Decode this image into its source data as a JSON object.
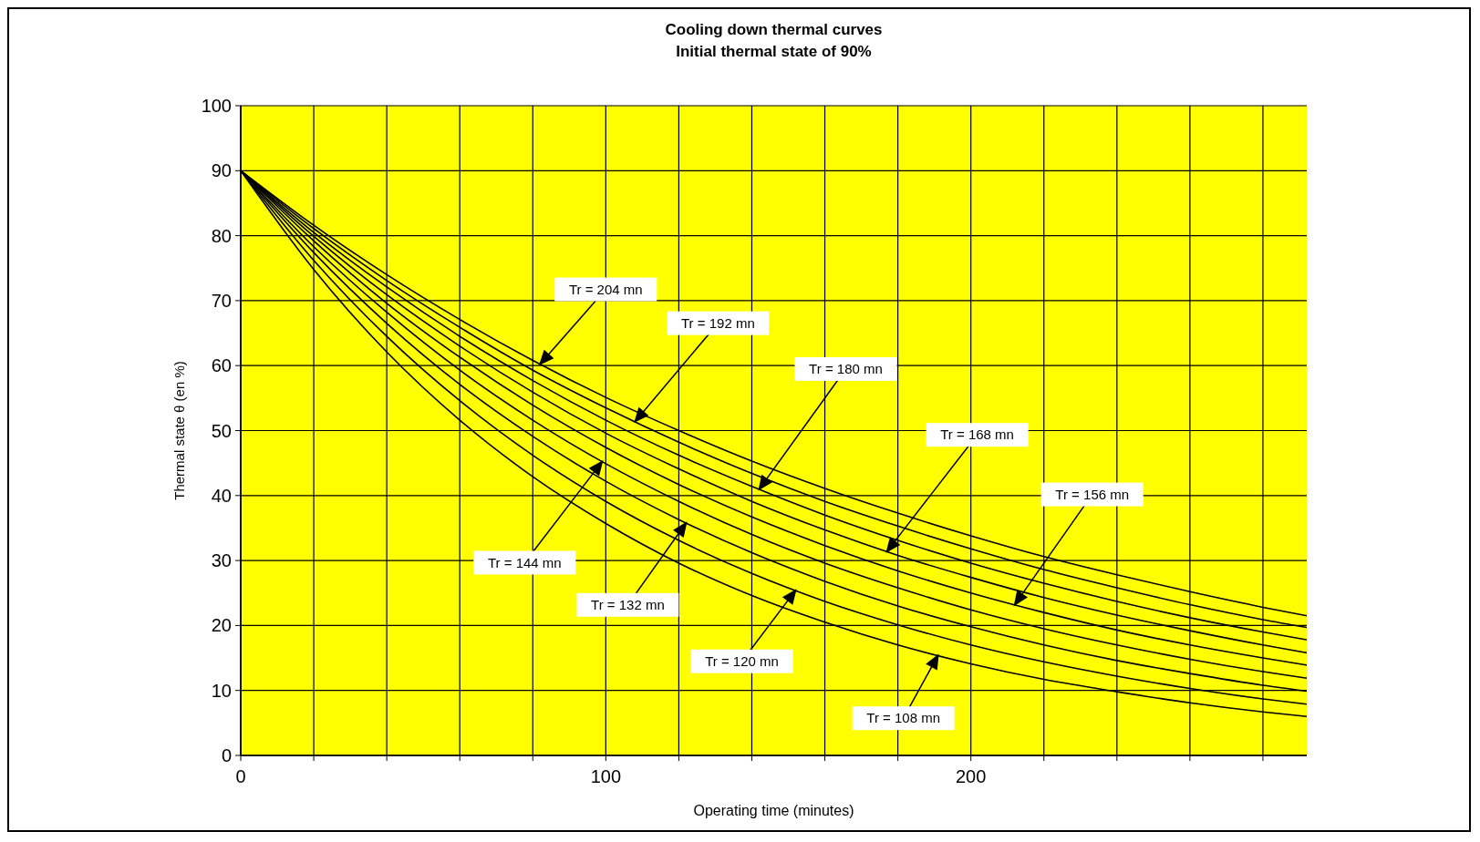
{
  "chart_data": {
    "type": "line",
    "title": "Cooling down thermal curves",
    "subtitle": "Initial thermal state of 90%",
    "xlabel": "Operating time (minutes)",
    "ylabel": "Thermal state θ (en %)",
    "x": [
      0,
      20,
      40,
      60,
      80,
      100,
      120,
      140,
      160,
      180,
      200,
      220,
      240,
      260,
      280,
      292
    ],
    "series": [
      {
        "color": "#000000",
        "values": [
          90,
          74.8,
          62.1,
          51.6,
          42.9,
          35.7,
          29.6,
          24.6,
          20.5,
          17.0,
          14.1,
          11.7,
          9.8,
          8.1,
          6.7,
          6.0
        ]
      },
      {
        "color": "#000000",
        "values": [
          90,
          76.2,
          64.5,
          54.6,
          46.2,
          39.1,
          33.1,
          28.0,
          23.7,
          20.1,
          17.0,
          14.4,
          12.2,
          10.3,
          8.7,
          7.9
        ]
      },
      {
        "color": "#000000",
        "values": [
          90,
          77.4,
          66.5,
          57.1,
          49.1,
          42.2,
          36.3,
          31.2,
          26.8,
          23.0,
          19.8,
          17.0,
          14.6,
          12.6,
          10.8,
          9.9
        ]
      },
      {
        "color": "#000000",
        "values": [
          90,
          78.3,
          68.2,
          59.3,
          51.6,
          44.9,
          39.1,
          34.0,
          29.6,
          25.8,
          22.4,
          19.5,
          17.0,
          14.8,
          12.9,
          11.9
        ]
      },
      {
        "color": "#000000",
        "values": [
          90,
          79.2,
          69.6,
          61.3,
          53.9,
          47.4,
          41.7,
          36.7,
          32.3,
          28.4,
          25.0,
          22.0,
          19.3,
          17.0,
          15.0,
          13.9
        ]
      },
      {
        "color": "#000000",
        "values": [
          90,
          79.9,
          70.9,
          63.0,
          55.9,
          49.6,
          44.1,
          39.1,
          34.7,
          30.8,
          27.4,
          24.3,
          21.6,
          19.2,
          17.0,
          15.8
        ]
      },
      {
        "color": "#000000",
        "values": [
          90,
          80.5,
          72.1,
          64.5,
          57.7,
          51.6,
          46.2,
          41.4,
          37.0,
          33.1,
          29.6,
          26.5,
          23.7,
          21.2,
          19.0,
          17.8
        ]
      },
      {
        "color": "#000000",
        "values": [
          90,
          81.1,
          73.1,
          65.9,
          59.3,
          53.5,
          48.2,
          43.4,
          39.1,
          35.3,
          31.8,
          28.6,
          25.8,
          23.2,
          20.9,
          19.7
        ]
      },
      {
        "color": "#000000",
        "values": [
          90,
          81.6,
          74.0,
          67.1,
          60.8,
          55.1,
          50.0,
          45.3,
          41.1,
          37.3,
          33.8,
          30.6,
          27.8,
          25.2,
          22.8,
          21.5
        ]
      }
    ],
    "annotations": [
      "Tr = 108 mn",
      "Tr = 120 mn",
      "Tr = 132 mn",
      "Tr = 144 mn",
      "Tr = 156 mn",
      "Tr = 168 mn",
      "Tr = 180 mn",
      "Tr = 192 mn",
      "Tr = 204 mn"
    ],
    "xlim": [
      0,
      292
    ],
    "ylim": [
      0,
      100
    ],
    "xticks": [
      0,
      {
        "value": 20,
        "label": null
      },
      {
        "value": 40,
        "label": null
      },
      {
        "value": 60,
        "label": null
      },
      {
        "value": 80,
        "label": null
      },
      100,
      {
        "value": 120,
        "label": null
      },
      {
        "value": 140,
        "label": null
      },
      {
        "value": 160,
        "label": null
      },
      {
        "value": 180,
        "label": null
      },
      200,
      {
        "value": 220,
        "label": null
      },
      {
        "value": 240,
        "label": null
      },
      {
        "value": 260,
        "label": null
      },
      {
        "value": 280,
        "label": null
      }
    ],
    "yticks": [
      0,
      10,
      20,
      30,
      40,
      50,
      60,
      70,
      80,
      90,
      100
    ],
    "grid": true,
    "marker": "none",
    "line_style": "solid"
  }
}
